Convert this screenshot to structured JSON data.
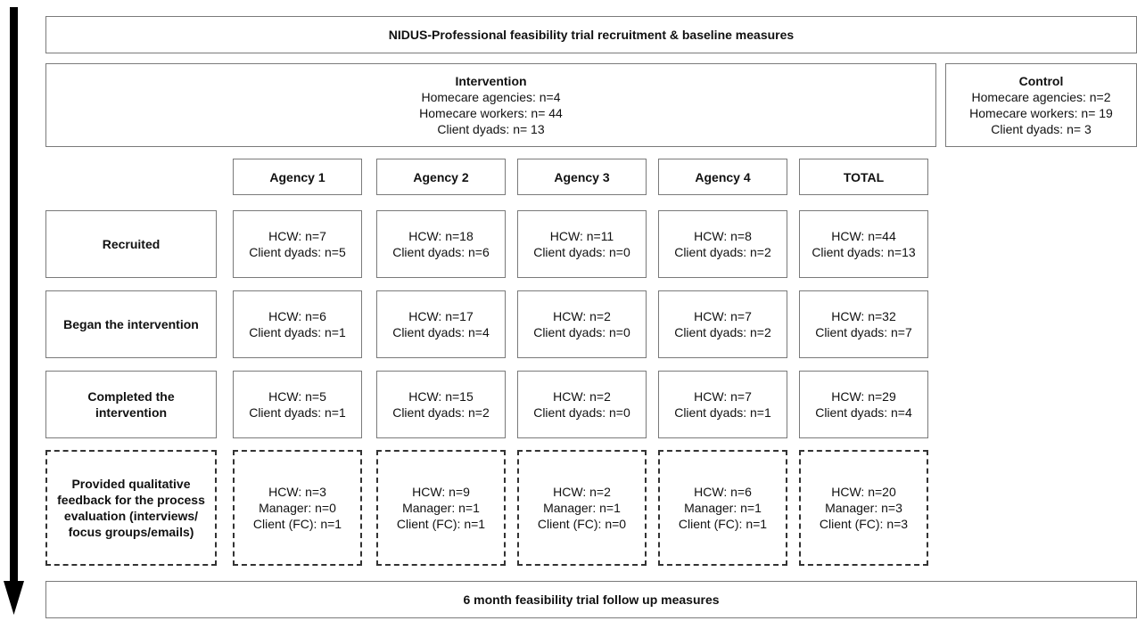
{
  "title": "NIDUS-Professional feasibility trial recruitment & baseline measures",
  "footer": "6 month feasibility trial follow up measures",
  "intervention": {
    "heading": "Intervention",
    "lines": [
      "Homecare agencies: n=4",
      "Homecare workers: n= 44",
      "Client dyads: n= 13"
    ]
  },
  "control": {
    "heading": "Control",
    "lines": [
      "Homecare agencies: n=2",
      "Homecare workers: n= 19",
      "Client dyads: n= 3"
    ]
  },
  "columns": [
    "Agency 1",
    "Agency 2",
    "Agency 3",
    "Agency 4",
    "TOTAL"
  ],
  "rows": [
    {
      "label": "Recruited",
      "cells": [
        [
          "HCW: n=7",
          "Client dyads: n=5"
        ],
        [
          "HCW: n=18",
          "Client dyads: n=6"
        ],
        [
          "HCW: n=11",
          "Client dyads: n=0"
        ],
        [
          "HCW: n=8",
          "Client dyads: n=2"
        ],
        [
          "HCW: n=44",
          "Client dyads: n=13"
        ]
      ]
    },
    {
      "label": "Began the intervention",
      "cells": [
        [
          "HCW: n=6",
          "Client dyads: n=1"
        ],
        [
          "HCW: n=17",
          "Client dyads: n=4"
        ],
        [
          "HCW: n=2",
          "Client dyads: n=0"
        ],
        [
          "HCW: n=7",
          "Client dyads: n=2"
        ],
        [
          "HCW: n=32",
          "Client dyads: n=7"
        ]
      ]
    },
    {
      "label": "Completed the intervention",
      "cells": [
        [
          "HCW: n=5",
          "Client dyads: n=1"
        ],
        [
          "HCW: n=15",
          "Client dyads: n=2"
        ],
        [
          "HCW: n=2",
          "Client dyads: n=0"
        ],
        [
          "HCW: n=7",
          "Client dyads: n=1"
        ],
        [
          "HCW: n=29",
          "Client dyads: n=4"
        ]
      ]
    },
    {
      "label": "Provided qualitative feedback for the process evaluation (interviews/ focus groups/emails)",
      "cells": [
        [
          "HCW: n=3",
          "Manager: n=0",
          "Client (FC): n=1"
        ],
        [
          "HCW: n=9",
          "Manager: n=1",
          "Client (FC): n=1"
        ],
        [
          "HCW: n=2",
          "Manager: n=1",
          "Client (FC): n=0"
        ],
        [
          "HCW: n=6",
          "Manager: n=1",
          "Client (FC): n=1"
        ],
        [
          "HCW: n=20",
          "Manager: n=3",
          "Client (FC): n=3"
        ]
      ]
    }
  ]
}
